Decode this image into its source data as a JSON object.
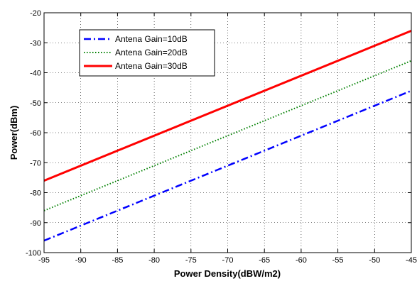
{
  "chart_data": {
    "type": "line",
    "xlabel": "Power Density(dBW/m2)",
    "ylabel": "Power(dBm)",
    "xlim": [
      -95,
      -45
    ],
    "ylim": [
      -100,
      -20
    ],
    "xticks": [
      -95,
      -90,
      -85,
      -80,
      -75,
      -70,
      -65,
      -60,
      -55,
      -50,
      -45
    ],
    "yticks": [
      -100,
      -90,
      -80,
      -70,
      -60,
      -50,
      -40,
      -30,
      -20
    ],
    "grid": true,
    "legend_position": "top-left",
    "series": [
      {
        "name": "Antena Gain=10dB",
        "color": "#0000ff",
        "style": "dash-dot",
        "x": [
          -95,
          -45
        ],
        "y": [
          -96,
          -46
        ]
      },
      {
        "name": "Antena Gain=20dB",
        "color": "#008000",
        "style": "dotted",
        "x": [
          -95,
          -45
        ],
        "y": [
          -86,
          -36
        ]
      },
      {
        "name": "Antena Gain=30dB",
        "color": "#ff0000",
        "style": "solid",
        "x": [
          -95,
          -45
        ],
        "y": [
          -76,
          -26
        ]
      }
    ]
  }
}
